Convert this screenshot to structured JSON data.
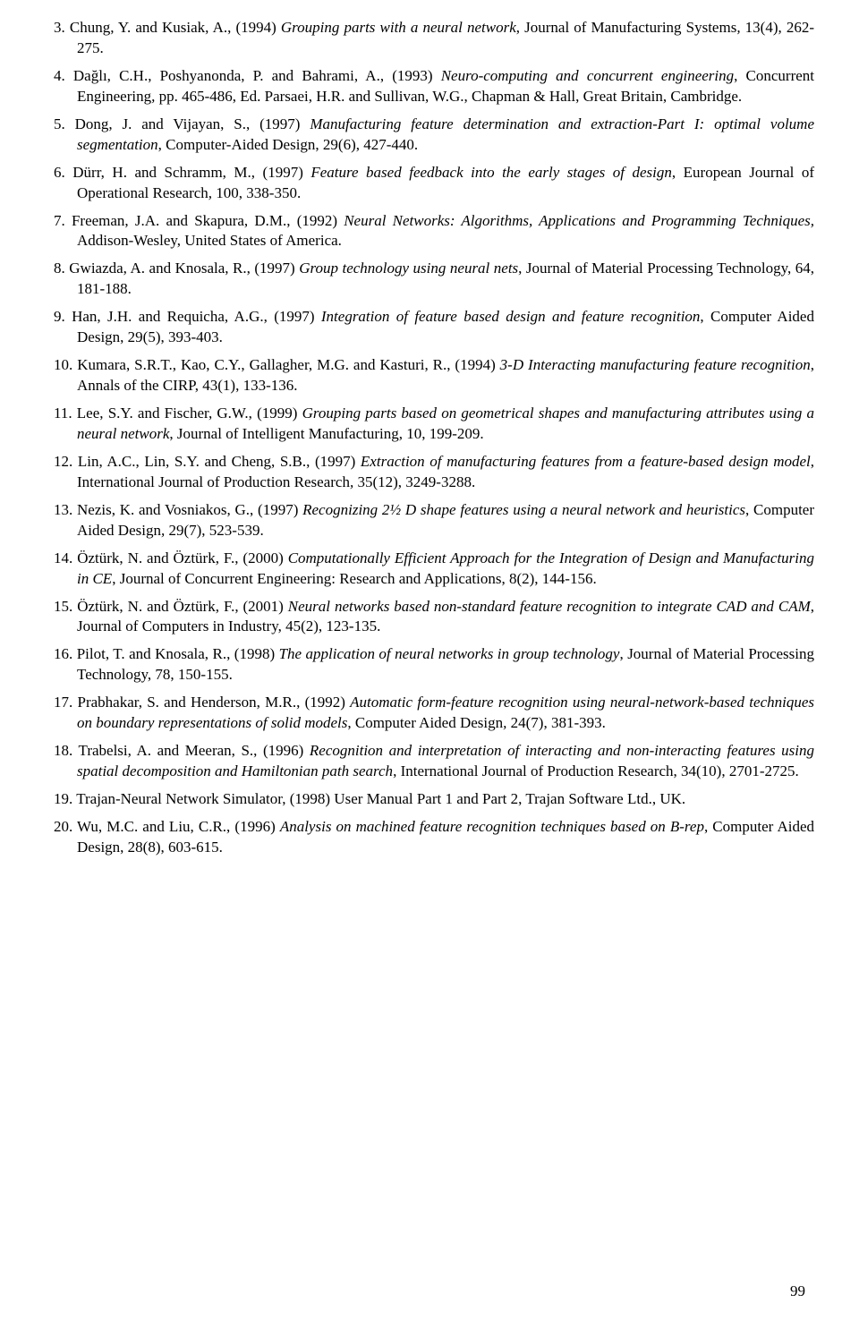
{
  "page_number": "99",
  "references": [
    {
      "num": "3",
      "html": "Chung, Y. and Kusiak, A., (1994) <span class=\"italic\">Grouping parts with a neural network</span>, Journal of Manufacturing Systems<span class=\"italic\">,</span> 13(4), 262-275."
    },
    {
      "num": "4",
      "html": "Dağlı, C.H., Poshyanonda, P. and Bahrami, A., (1993) <span class=\"italic\">Neuro-computing and concurrent engineering</span>, Concurrent Engineering<span class=\"italic\">,</span> pp. 465-486, Ed. Parsaei, H.R. and Sullivan, W.G., Chapman & Hall, Great Britain, Cambridge."
    },
    {
      "num": "5",
      "html": "Dong, J. and Vijayan, S., (1997) <span class=\"italic\">Manufacturing feature determination and extraction-Part I: optimal volume segmentation</span>, Computer-Aided Design, 29(6), 427-440."
    },
    {
      "num": "6",
      "html": "Dürr, H. and Schramm, M., (1997) <span class=\"italic\">Feature based feedback into the early stages of design</span>, European Journal of Operational Research<span class=\"italic\">,</span> 100, 338-350."
    },
    {
      "num": "7",
      "html": "Freeman, J.A. and Skapura, D.M., (1992) <span class=\"italic\">Neural Networks: Algorithms, Applications and Programming Techniques,</span> Addison-Wesley, United States of America."
    },
    {
      "num": "8",
      "html": "Gwiazda, A. and Knosala, R., (1997) <span class=\"italic\">Group technology using neural nets</span>, Journal of Material Processing Technology, 64, 181-188."
    },
    {
      "num": "9",
      "html": "Han, J.H. and Requicha, A.G., (1997) <span class=\"italic\">Integration of feature based design and feature recognition</span>, Computer Aided Design, 29(5), 393-403."
    },
    {
      "num": "10",
      "html": "Kumara, S.R.T., Kao, C.Y., Gallagher, M.G. and Kasturi, R., (1994) <span class=\"italic\">3-D Interacting manufacturing feature recognition</span>, Annals of the CIRP, 43(1), 133-136."
    },
    {
      "num": "11",
      "html": "Lee, S.Y. and Fischer, G.W., (1999) <span class=\"italic\">Grouping parts based on geometrical shapes and manufacturing attributes using a neural network</span>, Journal of Intelligent Manufacturing, 10, 199-209."
    },
    {
      "num": "12",
      "html": "Lin, A.C., Lin, S.Y. and Cheng, S.B., (1997) <span class=\"italic\">Extraction of manufacturing features from a feature-based design model</span>, International Journal of Production Research<span class=\"italic\">,</span> 35(12), 3249-3288."
    },
    {
      "num": "13",
      "html": "Nezis, K. and Vosniakos, G., (1997) <span class=\"italic\">Recognizing 2½ D shape features using a neural network and heuristics</span>, Computer Aided Design<span class=\"italic\">,</span> 29(7), 523-539."
    },
    {
      "num": "14",
      "html": "Öztürk, N. and Öztürk, F., (2000) <span class=\"italic\">Computationally Efficient Approach for the Integration of Design and Manufacturing in CE</span>, Journal of Concurrent Engineering: Research and Applications, 8(2), 144-156."
    },
    {
      "num": "15",
      "html": "Öztürk, N. and Öztürk, F., (2001) <span class=\"italic\">Neural networks based non-standard feature recognition to integrate CAD and CAM</span>, Journal of Computers in Industry, 45(2), 123-135."
    },
    {
      "num": "16",
      "html": "Pilot, T. and Knosala, R., (1998) <span class=\"italic\">The application of neural networks in group technology</span>, Journal of Material Processing Technology, 78, 150-155."
    },
    {
      "num": "17",
      "html": "Prabhakar, S. and Henderson, M.R., (1992) <span class=\"italic\">Automatic form-feature recognition using neural-network-based techniques on boundary representations of solid models</span>, Computer Aided Design<span class=\"italic\">,</span> 24(7), 381-393."
    },
    {
      "num": "18",
      "html": "Trabelsi, A. and Meeran, S., (1996) <span class=\"italic\">Recognition and interpretation of interacting and non-interacting features using spatial decomposition and Hamiltonian path search</span>, International Journal of Production Research, 34(10), 2701-2725."
    },
    {
      "num": "19",
      "html": "Trajan-Neural Network Simulator, (1998) User Manual Part 1 and Part 2, Trajan Software Ltd., UK."
    },
    {
      "num": "20",
      "html": "Wu, M.C. and Liu, C.R., (1996) <span class=\"italic\">Analysis on machined feature recognition techniques based on B-rep</span>, Computer Aided Design, 28(8), 603-615."
    }
  ]
}
